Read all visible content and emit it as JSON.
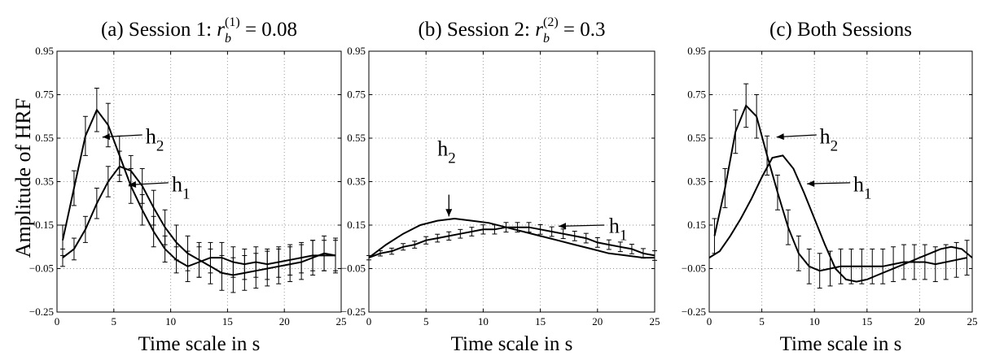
{
  "figure": {
    "ylabel": "Amplitude of HRF"
  },
  "chart_data": [
    {
      "type": "line",
      "title": "(a) Session 1: r_b^(1) = 0.08",
      "title_parts": {
        "prefix": "(a) Session 1: ",
        "var": "r",
        "sub": "b",
        "sup": "(1)",
        "value": " = 0.08"
      },
      "xlabel": "Time scale in s",
      "ylabel": "Amplitude of HRF",
      "xlim": [
        0,
        25
      ],
      "ylim": [
        -0.25,
        0.95
      ],
      "xticks": [
        0,
        5,
        10,
        15,
        20,
        25
      ],
      "yticks": [
        -0.25,
        -0.05,
        0.15,
        0.35,
        0.55,
        0.75,
        0.95
      ],
      "xtick_labels": [
        "0",
        "5",
        "10",
        "15",
        "20",
        "25"
      ],
      "ytick_labels": [
        "−0.25",
        "−0.05",
        "0.15",
        "0.35",
        "0.55",
        "0.75",
        "0.95"
      ],
      "grid": true,
      "series": [
        {
          "name": "h2",
          "x": [
            0.5,
            1.5,
            2.5,
            3.5,
            4.5,
            5.5,
            6.5,
            7.5,
            8.5,
            9.5,
            10.5,
            11.5,
            12.5,
            13.5,
            14.5,
            15.5,
            16.5,
            17.5,
            18.5,
            19.5,
            20.5,
            21.5,
            22.5,
            23.5,
            24.5
          ],
          "y": [
            0.08,
            0.32,
            0.56,
            0.68,
            0.61,
            0.47,
            0.33,
            0.22,
            0.12,
            0.04,
            -0.01,
            -0.04,
            -0.02,
            0.0,
            0.0,
            -0.02,
            -0.03,
            -0.02,
            -0.03,
            -0.02,
            -0.01,
            0.0,
            0.01,
            0.01,
            0.01
          ],
          "err": [
            0.07,
            0.08,
            0.09,
            0.1,
            0.1,
            0.09,
            0.08,
            0.07,
            0.07,
            0.06,
            0.06,
            0.07,
            0.07,
            0.07,
            0.07,
            0.07,
            0.07,
            0.07,
            0.07,
            0.07,
            0.07,
            0.07,
            0.07,
            0.07,
            0.07
          ]
        },
        {
          "name": "h1",
          "x": [
            0.5,
            1.5,
            2.5,
            3.5,
            4.5,
            5.5,
            6.5,
            7.5,
            8.5,
            9.5,
            10.5,
            11.5,
            12.5,
            13.5,
            14.5,
            15.5,
            16.5,
            17.5,
            18.5,
            19.5,
            20.5,
            21.5,
            22.5,
            23.5,
            24.5
          ],
          "y": [
            0.0,
            0.04,
            0.13,
            0.25,
            0.35,
            0.42,
            0.4,
            0.33,
            0.23,
            0.14,
            0.07,
            0.02,
            -0.01,
            -0.04,
            -0.07,
            -0.08,
            -0.07,
            -0.06,
            -0.05,
            -0.04,
            -0.03,
            -0.02,
            0.0,
            0.02,
            0.01
          ],
          "err": [
            0.04,
            0.05,
            0.06,
            0.07,
            0.07,
            0.07,
            0.07,
            0.08,
            0.08,
            0.08,
            0.08,
            0.08,
            0.08,
            0.08,
            0.08,
            0.08,
            0.08,
            0.08,
            0.08,
            0.08,
            0.08,
            0.08,
            0.08,
            0.08,
            0.08
          ]
        }
      ],
      "annotations": [
        {
          "label_main": "h",
          "label_sub": "2",
          "arrow_from": [
            7.5,
            0.565
          ],
          "arrow_to": [
            4.0,
            0.555
          ],
          "text_at": [
            7.8,
            0.525
          ]
        },
        {
          "label_main": "h",
          "label_sub": "1",
          "arrow_from": [
            9.8,
            0.345
          ],
          "arrow_to": [
            6.3,
            0.335
          ],
          "text_at": [
            10.1,
            0.305
          ]
        }
      ]
    },
    {
      "type": "line",
      "title": "(b) Session 2: r_b^(2) = 0.3",
      "title_parts": {
        "prefix": "(b) Session 2: ",
        "var": "r",
        "sub": "b",
        "sup": "(2)",
        "value": " = 0.3"
      },
      "xlabel": "Time scale in s",
      "xlim": [
        0,
        25
      ],
      "ylim": [
        -0.25,
        0.95
      ],
      "xticks": [
        0,
        5,
        10,
        15,
        20,
        25
      ],
      "yticks": [
        -0.25,
        -0.05,
        0.15,
        0.35,
        0.55,
        0.75,
        0.95
      ],
      "xtick_labels": [
        "0",
        "5",
        "10",
        "15",
        "20",
        "25"
      ],
      "ytick_labels": [
        "−0.25",
        "−0.05",
        "0.15",
        "0.35",
        "0.55",
        "0.75",
        "0.95"
      ],
      "grid": true,
      "series": [
        {
          "name": "h2",
          "x": [
            0.0,
            1.5,
            3.0,
            4.5,
            6.0,
            7.5,
            9.0,
            10.5,
            12.0,
            13.5,
            15.0,
            16.5,
            18.0,
            19.5,
            21.0,
            22.5,
            24.0,
            25.0
          ],
          "y": [
            0.0,
            0.06,
            0.11,
            0.15,
            0.17,
            0.18,
            0.17,
            0.16,
            0.14,
            0.12,
            0.1,
            0.08,
            0.06,
            0.04,
            0.02,
            0.01,
            0.0,
            0.0
          ],
          "err": []
        },
        {
          "name": "h1",
          "x": [
            0.0,
            1.0,
            2.0,
            3.0,
            4.0,
            5.0,
            6.0,
            7.0,
            8.0,
            9.0,
            10.0,
            11.0,
            12.0,
            13.0,
            14.0,
            15.0,
            16.0,
            17.0,
            18.0,
            19.0,
            20.0,
            21.0,
            22.0,
            23.0,
            24.0,
            25.0
          ],
          "y": [
            0.0,
            0.02,
            0.03,
            0.05,
            0.06,
            0.08,
            0.09,
            0.1,
            0.11,
            0.12,
            0.13,
            0.13,
            0.14,
            0.14,
            0.14,
            0.13,
            0.12,
            0.11,
            0.1,
            0.09,
            0.07,
            0.06,
            0.05,
            0.04,
            0.02,
            0.01
          ],
          "err": [
            0.01,
            0.012,
            0.014,
            0.015,
            0.016,
            0.017,
            0.018,
            0.019,
            0.02,
            0.02,
            0.021,
            0.021,
            0.022,
            0.022,
            0.022,
            0.022,
            0.022,
            0.022,
            0.022,
            0.022,
            0.022,
            0.022,
            0.022,
            0.022,
            0.022,
            0.022
          ]
        }
      ],
      "annotations": [
        {
          "label_main": "h",
          "label_sub": "2",
          "arrow_from": [
            7.0,
            0.29
          ],
          "arrow_to": [
            7.0,
            0.19
          ],
          "text_at": [
            6.0,
            0.47
          ]
        },
        {
          "label_main": "h",
          "label_sub": "1",
          "arrow_from": [
            20.6,
            0.15
          ],
          "arrow_to": [
            16.6,
            0.145
          ],
          "text_at": [
            21.0,
            0.115
          ]
        }
      ]
    },
    {
      "type": "line",
      "title": "(c) Both Sessions",
      "xlabel": "Time scale in s",
      "xlim": [
        0,
        25
      ],
      "ylim": [
        -0.25,
        0.95
      ],
      "xticks": [
        0,
        5,
        10,
        15,
        20,
        25
      ],
      "yticks": [
        -0.25,
        -0.05,
        0.15,
        0.35,
        0.55,
        0.75,
        0.95
      ],
      "xtick_labels": [
        "0",
        "5",
        "10",
        "15",
        "20",
        "25"
      ],
      "ytick_labels": [
        "−0.25",
        "−0.05",
        "0.15",
        "0.35",
        "0.55",
        "0.75",
        "0.95"
      ],
      "grid": true,
      "series": [
        {
          "name": "h2",
          "x": [
            0.5,
            1.5,
            2.5,
            3.5,
            4.5,
            5.5,
            6.5,
            7.5,
            8.5,
            9.5,
            10.5,
            11.5,
            12.5,
            13.5,
            14.5,
            15.5,
            16.5,
            17.5,
            18.5,
            19.5,
            20.5,
            21.5,
            22.5,
            23.5,
            24.5
          ],
          "y": [
            0.1,
            0.32,
            0.58,
            0.7,
            0.65,
            0.47,
            0.3,
            0.14,
            0.02,
            -0.04,
            -0.06,
            -0.05,
            -0.04,
            -0.04,
            -0.04,
            -0.04,
            -0.04,
            -0.03,
            -0.02,
            -0.02,
            -0.02,
            -0.03,
            -0.02,
            -0.01,
            0.0
          ],
          "err": [
            0.08,
            0.09,
            0.1,
            0.1,
            0.1,
            0.09,
            0.08,
            0.08,
            0.08,
            0.08,
            0.08,
            0.08,
            0.08,
            0.08,
            0.08,
            0.08,
            0.08,
            0.08,
            0.08,
            0.08,
            0.08,
            0.08,
            0.08,
            0.08,
            0.08
          ]
        },
        {
          "name": "h1",
          "x": [
            0.0,
            1.0,
            2.0,
            3.0,
            4.0,
            5.0,
            6.0,
            7.0,
            8.0,
            9.0,
            10.0,
            11.0,
            12.0,
            13.0,
            14.0,
            15.0,
            16.0,
            17.0,
            18.0,
            19.0,
            20.0,
            21.0,
            22.0,
            23.0,
            24.0,
            25.0
          ],
          "y": [
            0.0,
            0.03,
            0.1,
            0.18,
            0.27,
            0.37,
            0.46,
            0.47,
            0.41,
            0.3,
            0.18,
            0.06,
            -0.05,
            -0.1,
            -0.11,
            -0.1,
            -0.08,
            -0.06,
            -0.04,
            -0.02,
            0.0,
            0.02,
            0.04,
            0.05,
            0.04,
            0.0
          ],
          "err": [
            0.0,
            0.0,
            0.0,
            0.0,
            0.0,
            0.0,
            0.0,
            0.0,
            0.0,
            0.0,
            0.0,
            0.0,
            0.0,
            0.0,
            0.0,
            0.0,
            0.0,
            0.0,
            0.0,
            0.0,
            0.0,
            0.0,
            0.0,
            0.0,
            0.0,
            0.0
          ]
        }
      ],
      "annotations": [
        {
          "label_main": "h",
          "label_sub": "2",
          "arrow_from": [
            10.2,
            0.565
          ],
          "arrow_to": [
            6.4,
            0.555
          ],
          "text_at": [
            10.5,
            0.525
          ]
        },
        {
          "label_main": "h",
          "label_sub": "1",
          "arrow_from": [
            13.4,
            0.345
          ],
          "arrow_to": [
            9.3,
            0.34
          ],
          "text_at": [
            13.7,
            0.305
          ]
        }
      ]
    }
  ]
}
